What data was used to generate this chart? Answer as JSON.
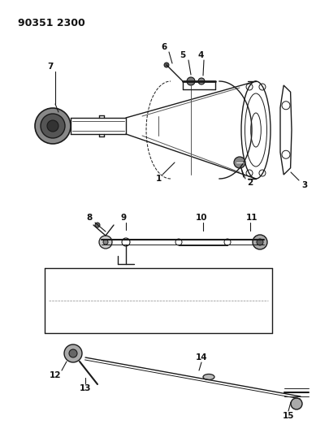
{
  "title_text": "90351 2300",
  "bg_color": "#ffffff",
  "line_color": "#1a1a1a",
  "label_color": "#111111",
  "figsize": [
    4.05,
    5.33
  ],
  "dpi": 100
}
